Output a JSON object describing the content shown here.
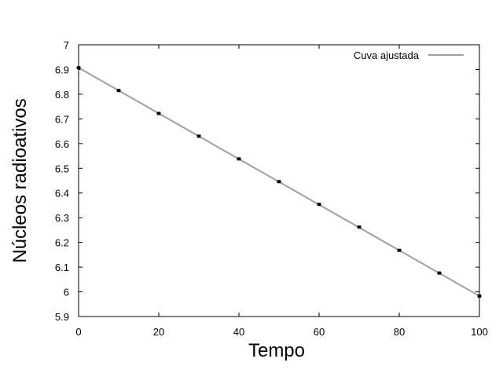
{
  "chart_data": {
    "type": "scatter",
    "xlabel": "Tempo",
    "ylabel": "Núcleos radioativos",
    "xlim": [
      0,
      100
    ],
    "ylim": [
      5.9,
      7
    ],
    "xticks": [
      "0",
      "20",
      "40",
      "60",
      "80",
      "100"
    ],
    "yticks": [
      "5.9",
      "6",
      "6.1",
      "6.2",
      "6.3",
      "6.4",
      "6.5",
      "6.6",
      "6.7",
      "6.8",
      "6.9",
      "7"
    ],
    "grid": false,
    "legend_position": "top-right",
    "series": [
      {
        "kind": "points",
        "x": [
          0,
          10,
          20,
          30,
          40,
          50,
          60,
          70,
          80,
          90,
          100
        ],
        "y": [
          6.907,
          6.815,
          6.722,
          6.63,
          6.538,
          6.446,
          6.354,
          6.262,
          6.168,
          6.076,
          5.983
        ],
        "error": [
          0.003,
          0.003,
          0.003,
          0.003,
          0.003,
          0.003,
          0.003,
          0.003,
          0.003,
          0.003,
          0.003
        ],
        "color": "#000000"
      },
      {
        "kind": "line",
        "name": "Cuva ajustada",
        "x": [
          0,
          100
        ],
        "y": [
          6.907,
          5.983
        ],
        "color": "#a0a0a0"
      }
    ]
  }
}
